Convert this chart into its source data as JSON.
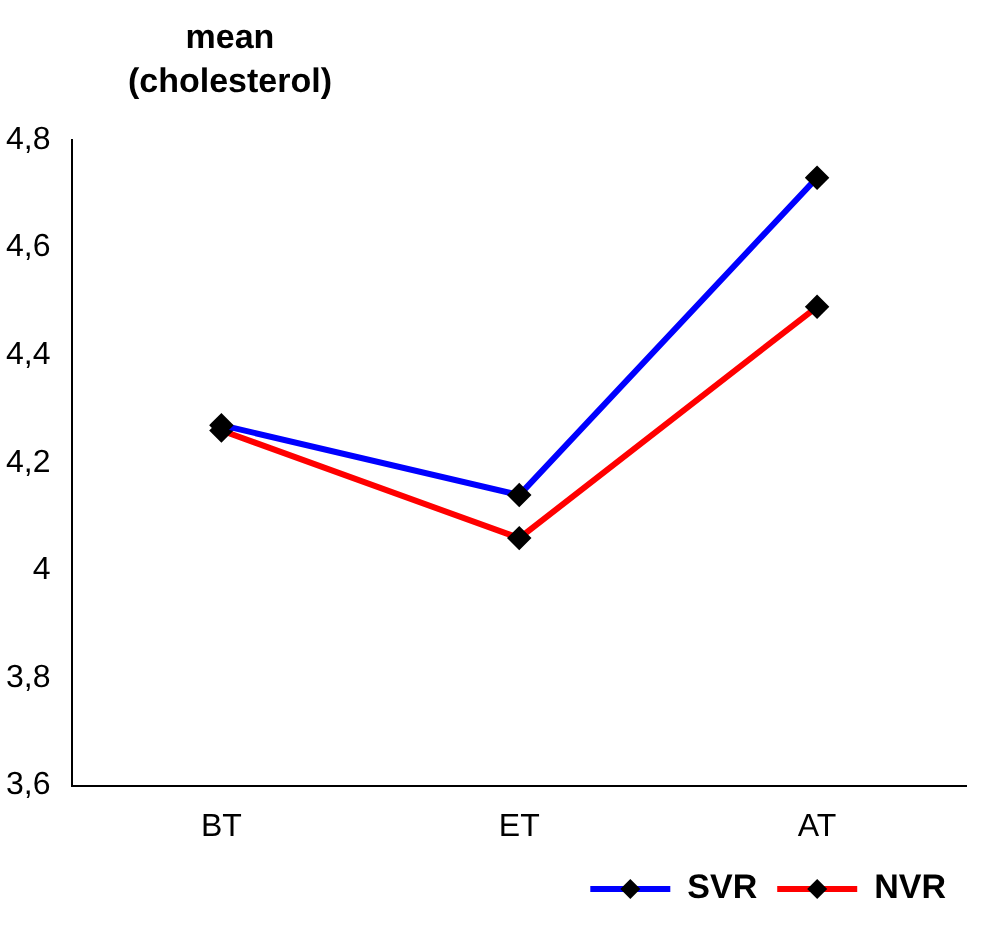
{
  "chart_data": {
    "type": "line",
    "ylabel": "mean (cholesterol)",
    "categories": [
      "BT",
      "ET",
      "AT"
    ],
    "series": [
      {
        "name": "SVR",
        "color": "#0000ff",
        "values": [
          4.27,
          4.14,
          4.73
        ]
      },
      {
        "name": "NVR",
        "color": "#ff0000",
        "values": [
          4.26,
          4.06,
          4.49
        ]
      }
    ],
    "ylim": [
      3.6,
      4.8
    ],
    "yticks": [
      {
        "value": 3.6,
        "label": "3,6"
      },
      {
        "value": 3.8,
        "label": "3,8"
      },
      4,
      {
        "value": 4.2,
        "label": "4,2"
      },
      {
        "value": 4.4,
        "label": "4,4"
      },
      {
        "value": 4.6,
        "label": "4,6"
      },
      {
        "value": 4.8,
        "label": "4,8"
      }
    ],
    "grid": false,
    "legend": "bottom right",
    "marker": "diamond",
    "line_style": "solid"
  }
}
